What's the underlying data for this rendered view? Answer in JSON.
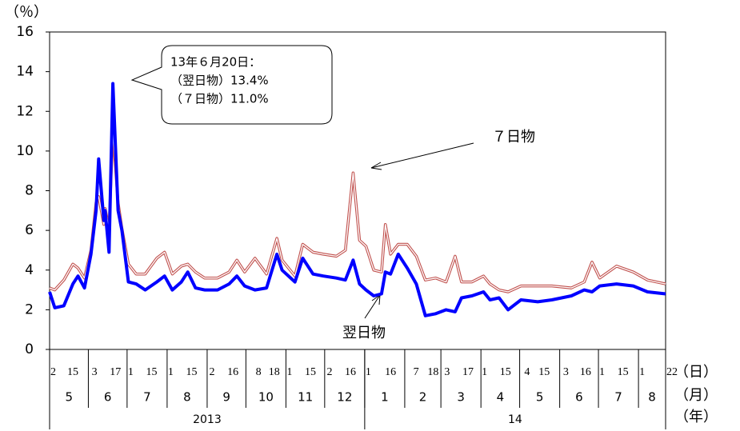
{
  "chart_data": {
    "type": "line",
    "y_unit": "（％）",
    "x_units": [
      "（日）",
      "（月）",
      "（年）"
    ],
    "callout": [
      "13年６月20日：",
      "（翌日物）13.4%",
      "（７日物）11.0%"
    ],
    "xlim": [
      "2013-05-02",
      "2014-08-22"
    ],
    "ylim": [
      0,
      16
    ],
    "yticks": [
      0,
      2,
      4,
      6,
      8,
      10,
      12,
      14,
      16
    ],
    "xticks": [
      {
        "value": "2013-05-02",
        "label": "2"
      },
      {
        "value": "2013-05-15",
        "label": "15"
      },
      {
        "value": "2013-06-03",
        "label": "3"
      },
      {
        "value": "2013-06-17",
        "label": "17"
      },
      {
        "value": "2013-07-01",
        "label": "1"
      },
      {
        "value": "2013-07-15",
        "label": "15"
      },
      {
        "value": "2013-08-01",
        "label": "1"
      },
      {
        "value": "2013-08-15",
        "label": "15"
      },
      {
        "value": "2013-09-02",
        "label": "2"
      },
      {
        "value": "2013-09-16",
        "label": "16"
      },
      {
        "value": "2013-10-08",
        "label": "8"
      },
      {
        "value": "2013-10-18",
        "label": "18"
      },
      {
        "value": "2013-11-01",
        "label": "1"
      },
      {
        "value": "2013-11-15",
        "label": "15"
      },
      {
        "value": "2013-12-02",
        "label": "2"
      },
      {
        "value": "2013-12-16",
        "label": "16"
      },
      {
        "value": "2014-01-01",
        "label": "1"
      },
      {
        "value": "2014-01-16",
        "label": "16"
      },
      {
        "value": "2014-02-07",
        "label": "7"
      },
      {
        "value": "2014-02-18",
        "label": "18"
      },
      {
        "value": "2014-03-03",
        "label": "3"
      },
      {
        "value": "2014-03-17",
        "label": "17"
      },
      {
        "value": "2014-04-01",
        "label": "1"
      },
      {
        "value": "2014-04-15",
        "label": "15"
      },
      {
        "value": "2014-05-04",
        "label": "4"
      },
      {
        "value": "2014-05-15",
        "label": "15"
      },
      {
        "value": "2014-06-03",
        "label": "3"
      },
      {
        "value": "2014-06-16",
        "label": "16"
      },
      {
        "value": "2014-07-01",
        "label": "1"
      },
      {
        "value": "2014-07-15",
        "label": "15"
      },
      {
        "value": "2014-08-01",
        "label": "1"
      },
      {
        "value": "2014-08-22",
        "label": "22"
      }
    ],
    "months": [
      {
        "value": "2013-05",
        "label": "5"
      },
      {
        "value": "2013-06",
        "label": "6"
      },
      {
        "value": "2013-07",
        "label": "7"
      },
      {
        "value": "2013-08",
        "label": "8"
      },
      {
        "value": "2013-09",
        "label": "9"
      },
      {
        "value": "2013-10",
        "label": "10"
      },
      {
        "value": "2013-11",
        "label": "11"
      },
      {
        "value": "2013-12",
        "label": "12"
      },
      {
        "value": "2014-01",
        "label": "1"
      },
      {
        "value": "2014-02",
        "label": "2"
      },
      {
        "value": "2014-03",
        "label": "3"
      },
      {
        "value": "2014-04",
        "label": "4"
      },
      {
        "value": "2014-05",
        "label": "5"
      },
      {
        "value": "2014-06",
        "label": "6"
      },
      {
        "value": "2014-07",
        "label": "7"
      },
      {
        "value": "2014-08",
        "label": "8"
      }
    ],
    "years": [
      {
        "value": "2013",
        "label": "2013"
      },
      {
        "value": "2014",
        "label": "14"
      }
    ],
    "x": [
      "2013-05-02",
      "2013-05-06",
      "2013-05-13",
      "2013-05-20",
      "2013-05-24",
      "2013-05-29",
      "2013-06-03",
      "2013-06-07",
      "2013-06-09",
      "2013-06-13",
      "2013-06-14",
      "2013-06-17",
      "2013-06-20",
      "2013-06-24",
      "2013-06-27",
      "2013-07-02",
      "2013-07-08",
      "2013-07-15",
      "2013-07-24",
      "2013-07-30",
      "2013-08-05",
      "2013-08-12",
      "2013-08-17",
      "2013-08-23",
      "2013-08-30",
      "2013-09-09",
      "2013-09-18",
      "2013-09-24",
      "2013-09-30",
      "2013-10-08",
      "2013-10-17",
      "2013-10-25",
      "2013-10-29",
      "2013-11-08",
      "2013-11-14",
      "2013-11-22",
      "2013-11-30",
      "2013-12-10",
      "2013-12-17",
      "2013-12-23",
      "2013-12-28",
      "2014-01-02",
      "2014-01-08",
      "2014-01-14",
      "2014-01-17",
      "2014-01-21",
      "2014-01-27",
      "2014-02-03",
      "2014-02-10",
      "2014-02-17",
      "2014-02-25",
      "2014-03-05",
      "2014-03-12",
      "2014-03-17",
      "2014-03-25",
      "2014-04-03",
      "2014-04-08",
      "2014-04-15",
      "2014-04-22",
      "2014-05-02",
      "2014-05-15",
      "2014-05-26",
      "2014-06-10",
      "2014-06-20",
      "2014-06-26",
      "2014-07-02",
      "2014-07-15",
      "2014-07-28",
      "2014-08-08",
      "2014-08-22"
    ],
    "series": [
      {
        "name": "７日物",
        "color": "#c0504d",
        "style": "double",
        "values": [
          3.1,
          3.0,
          3.5,
          4.3,
          4.1,
          3.6,
          5.0,
          7.4,
          7.7,
          6.3,
          7.1,
          6.1,
          11.0,
          7.4,
          6.1,
          4.3,
          3.8,
          3.8,
          4.6,
          4.9,
          3.8,
          4.2,
          4.3,
          3.9,
          3.6,
          3.6,
          3.9,
          4.5,
          3.9,
          4.6,
          3.8,
          5.6,
          4.5,
          3.7,
          5.3,
          4.9,
          4.8,
          4.7,
          5.0,
          8.9,
          5.5,
          5.2,
          4.0,
          3.9,
          6.3,
          4.8,
          5.3,
          5.3,
          4.7,
          3.5,
          3.6,
          3.4,
          4.7,
          3.4,
          3.4,
          3.7,
          3.3,
          3.0,
          2.9,
          3.2,
          3.2,
          3.2,
          3.1,
          3.4,
          4.4,
          3.6,
          4.2,
          3.9,
          3.5,
          3.3
        ]
      },
      {
        "name": "翌日物",
        "color": "#0000ff",
        "style": "solid",
        "values": [
          2.9,
          2.1,
          2.2,
          3.3,
          3.7,
          3.1,
          4.8,
          7.0,
          9.6,
          6.5,
          7.0,
          4.9,
          13.4,
          7.0,
          6.0,
          3.4,
          3.3,
          3.0,
          3.4,
          3.7,
          3.0,
          3.4,
          3.9,
          3.1,
          3.0,
          3.0,
          3.3,
          3.7,
          3.2,
          3.0,
          3.1,
          4.8,
          4.0,
          3.4,
          4.6,
          3.8,
          3.7,
          3.6,
          3.5,
          4.5,
          3.3,
          3.0,
          2.7,
          2.8,
          3.9,
          3.8,
          4.8,
          4.1,
          3.3,
          1.7,
          1.8,
          2.0,
          1.9,
          2.6,
          2.7,
          2.9,
          2.5,
          2.6,
          2.0,
          2.5,
          2.4,
          2.5,
          2.7,
          3.0,
          2.9,
          3.2,
          3.3,
          3.2,
          2.9,
          2.8
        ]
      }
    ]
  }
}
